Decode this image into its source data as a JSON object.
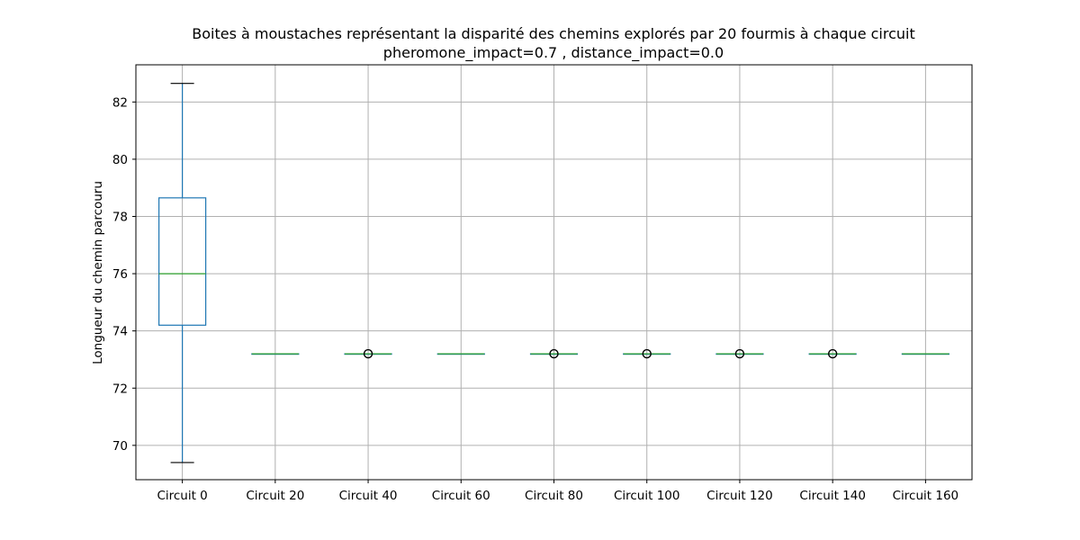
{
  "chart_data": {
    "type": "box",
    "title": "Boites à moustaches représentant la disparité des chemins explorés par 20 fourmis à chaque circuit",
    "subtitle": "pheromone_impact=0.7 , distance_impact=0.0",
    "xlabel": "",
    "ylabel": "Longueur du chemin parcouru",
    "ylim": [
      68.8,
      83.3
    ],
    "yticks": [
      70,
      72,
      74,
      76,
      78,
      80,
      82
    ],
    "grid": true,
    "categories": [
      "Circuit 0",
      "Circuit 20",
      "Circuit 40",
      "Circuit 60",
      "Circuit 80",
      "Circuit 100",
      "Circuit 120",
      "Circuit 140",
      "Circuit 160"
    ],
    "boxes": [
      {
        "category": "Circuit 0",
        "whisker_low": 69.4,
        "q1": 74.2,
        "median": 76.0,
        "q3": 78.65,
        "whisker_high": 82.65,
        "outliers": []
      },
      {
        "category": "Circuit 20",
        "whisker_low": 73.2,
        "q1": 73.2,
        "median": 73.2,
        "q3": 73.2,
        "whisker_high": 73.2,
        "outliers": []
      },
      {
        "category": "Circuit 40",
        "whisker_low": 73.2,
        "q1": 73.2,
        "median": 73.2,
        "q3": 73.2,
        "whisker_high": 73.2,
        "outliers": [
          73.2
        ]
      },
      {
        "category": "Circuit 60",
        "whisker_low": 73.2,
        "q1": 73.2,
        "median": 73.2,
        "q3": 73.2,
        "whisker_high": 73.2,
        "outliers": []
      },
      {
        "category": "Circuit 80",
        "whisker_low": 73.2,
        "q1": 73.2,
        "median": 73.2,
        "q3": 73.2,
        "whisker_high": 73.2,
        "outliers": [
          73.2
        ]
      },
      {
        "category": "Circuit 100",
        "whisker_low": 73.2,
        "q1": 73.2,
        "median": 73.2,
        "q3": 73.2,
        "whisker_high": 73.2,
        "outliers": [
          73.2
        ]
      },
      {
        "category": "Circuit 120",
        "whisker_low": 73.2,
        "q1": 73.2,
        "median": 73.2,
        "q3": 73.2,
        "whisker_high": 73.2,
        "outliers": [
          73.2
        ]
      },
      {
        "category": "Circuit 140",
        "whisker_low": 73.2,
        "q1": 73.2,
        "median": 73.2,
        "q3": 73.2,
        "whisker_high": 73.2,
        "outliers": [
          73.2
        ]
      },
      {
        "category": "Circuit 160",
        "whisker_low": 73.2,
        "q1": 73.2,
        "median": 73.2,
        "q3": 73.2,
        "whisker_high": 73.2,
        "outliers": []
      }
    ],
    "colors": {
      "box": "#1f77b4",
      "median": "#2ca02c",
      "whisker_cap": "#000000",
      "grid": "#b0b0b0",
      "outlier": "#000000"
    }
  }
}
